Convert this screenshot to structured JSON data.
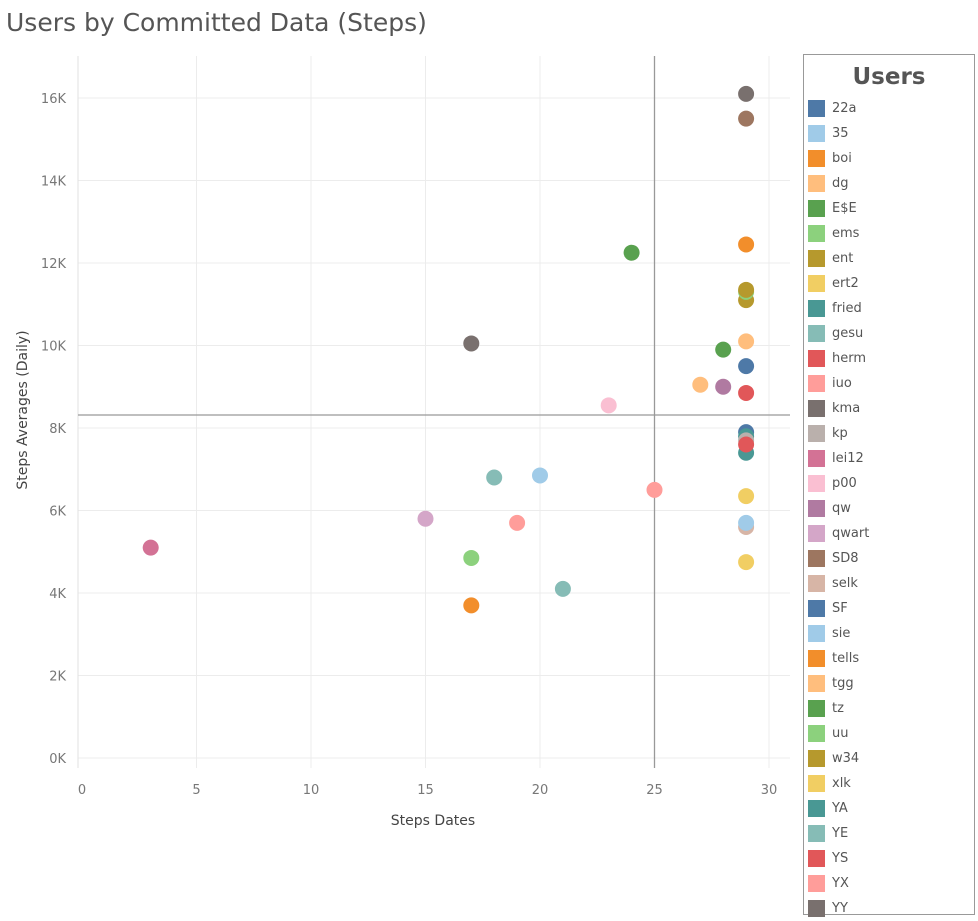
{
  "title": "Users by Committed Data (Steps)",
  "chart_data": {
    "type": "scatter",
    "title": "Users by Committed Data (Steps)",
    "xlabel": "Steps Dates",
    "ylabel": "Steps Averages (Daily)",
    "xlim": [
      0,
      31
    ],
    "ylim": [
      0,
      17000
    ],
    "x_ticks": [
      0,
      5,
      10,
      15,
      20,
      25,
      30
    ],
    "x_tick_labels": [
      "0",
      "5",
      "10",
      "15",
      "20",
      "25",
      "30"
    ],
    "y_ticks": [
      0,
      2000,
      4000,
      6000,
      8000,
      10000,
      12000,
      14000,
      16000
    ],
    "y_tick_labels": [
      "0K",
      "2K",
      "4K",
      "6K",
      "8K",
      "10K",
      "12K",
      "14K",
      "16K"
    ],
    "grid": true,
    "reference_lines": {
      "x": 25,
      "y": 8000
    },
    "legend_title": "Users",
    "legend_position": "right",
    "series": [
      {
        "name": "22a",
        "color": "#4e79a7",
        "x": 29,
        "y": 7900
      },
      {
        "name": "35",
        "color": "#a0cbe8",
        "x": 20,
        "y": 6850
      },
      {
        "name": "boi",
        "color": "#f28e2b",
        "x": 17,
        "y": 3700
      },
      {
        "name": "dg",
        "color": "#ffbe7d",
        "x": 27,
        "y": 9050
      },
      {
        "name": "E$E",
        "color": "#59a14f",
        "x": 24,
        "y": 12250
      },
      {
        "name": "ems",
        "color": "#8cd17d",
        "x": 17,
        "y": 4850
      },
      {
        "name": "ent",
        "color": "#b6992d",
        "x": 29,
        "y": 11100
      },
      {
        "name": "ert2",
        "color": "#f1ce63",
        "x": 29,
        "y": 6350
      },
      {
        "name": "fried",
        "color": "#499894",
        "x": 29,
        "y": 7800
      },
      {
        "name": "gesu",
        "color": "#86bcb6",
        "x": 18,
        "y": 6800
      },
      {
        "name": "herm",
        "color": "#e15759",
        "x": 29,
        "y": 8850
      },
      {
        "name": "iuo",
        "color": "#ff9d9a",
        "x": 25,
        "y": 6500
      },
      {
        "name": "kma",
        "color": "#79706e",
        "x": 17,
        "y": 10050
      },
      {
        "name": "kp",
        "color": "#bab0ac",
        "x": 29,
        "y": 7700
      },
      {
        "name": "lei12",
        "color": "#d37295",
        "x": 3,
        "y": 5100
      },
      {
        "name": "p00",
        "color": "#fabfd2",
        "x": 23,
        "y": 8550
      },
      {
        "name": "qw",
        "color": "#b07aa1",
        "x": 28,
        "y": 9000
      },
      {
        "name": "qwart",
        "color": "#d4a6c8",
        "x": 15,
        "y": 5800
      },
      {
        "name": "SD8",
        "color": "#9d7660",
        "x": 29,
        "y": 15500
      },
      {
        "name": "selk",
        "color": "#d7b5a6",
        "x": 29,
        "y": 5600
      },
      {
        "name": "SF",
        "color": "#4e79a7",
        "x": 29,
        "y": 9500
      },
      {
        "name": "sie",
        "color": "#a0cbe8",
        "x": 29,
        "y": 5700
      },
      {
        "name": "tells",
        "color": "#f28e2b",
        "x": 29,
        "y": 12450
      },
      {
        "name": "tgg",
        "color": "#ffbe7d",
        "x": 29,
        "y": 10100
      },
      {
        "name": "tz",
        "color": "#59a14f",
        "x": 28,
        "y": 9900
      },
      {
        "name": "uu",
        "color": "#8cd17d",
        "x": 29,
        "y": 11300
      },
      {
        "name": "w34",
        "color": "#b6992d",
        "x": 29,
        "y": 11350
      },
      {
        "name": "xlk",
        "color": "#f1ce63",
        "x": 29,
        "y": 4750
      },
      {
        "name": "YA",
        "color": "#499894",
        "x": 29,
        "y": 7400
      },
      {
        "name": "YE",
        "color": "#86bcb6",
        "x": 21,
        "y": 4100
      },
      {
        "name": "YS",
        "color": "#e15759",
        "x": 29,
        "y": 7600
      },
      {
        "name": "YX",
        "color": "#ff9d9a",
        "x": 19,
        "y": 5700
      },
      {
        "name": "YY",
        "color": "#79706e",
        "x": 29,
        "y": 16100
      }
    ]
  }
}
